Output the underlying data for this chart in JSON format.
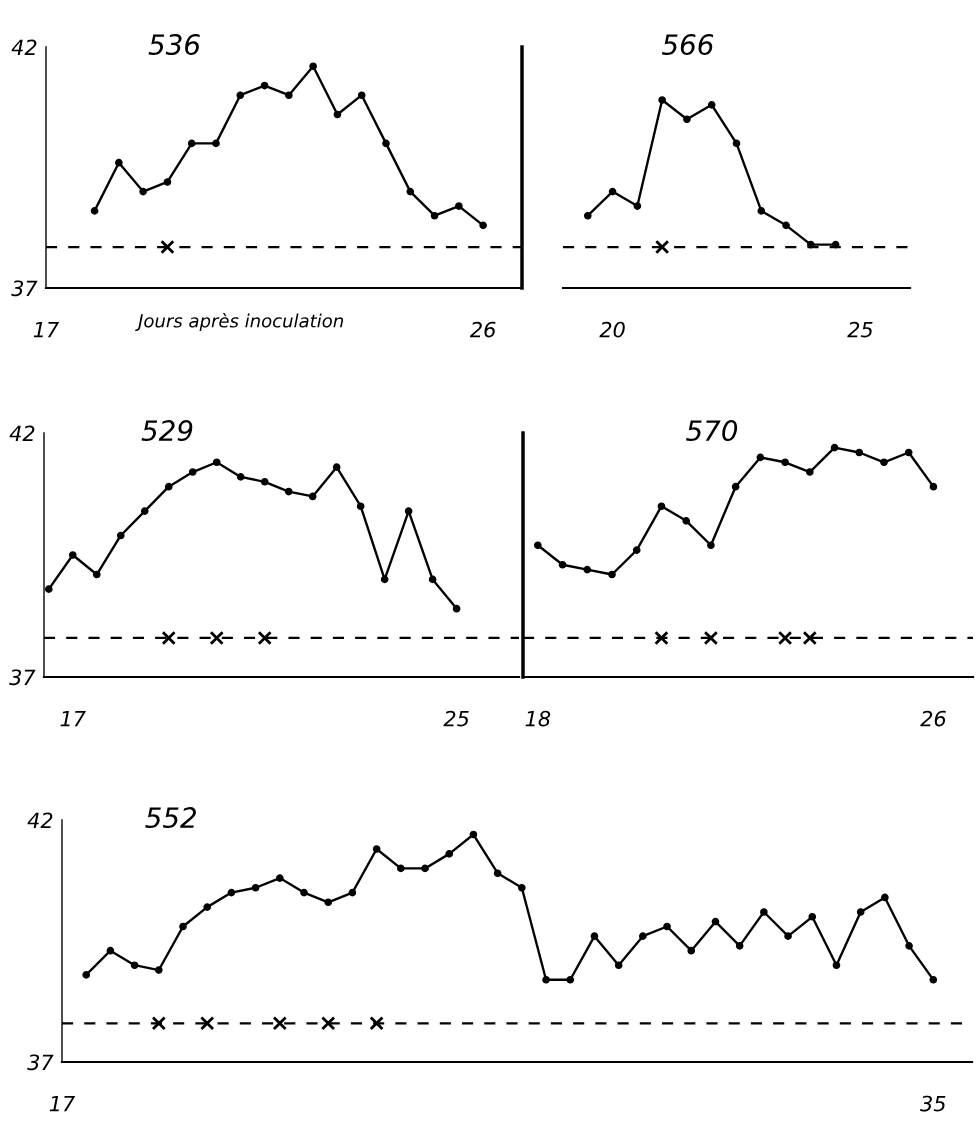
{
  "chart_data": [
    {
      "type": "line",
      "title": "536",
      "xlabel": "Jours après inoculation",
      "xlim": [
        17,
        26.8
      ],
      "xticks": [
        17,
        26
      ],
      "ylim": [
        37,
        42
      ],
      "yticks": [
        37,
        42
      ],
      "ref_lines": [
        {
          "axis": "y",
          "value": 37.85,
          "color": "#000000",
          "line_style": "dashed"
        }
      ],
      "series": [
        {
          "color": "#000000",
          "marker": "circle",
          "line_style": "solid",
          "x": [
            18,
            18.5,
            19,
            19.5,
            20,
            20.5,
            21,
            21.5,
            22,
            22.5,
            23,
            23.5,
            24,
            24.5,
            25,
            25.5,
            26
          ],
          "values": [
            38.6,
            39.6,
            39.0,
            39.2,
            40.0,
            40.0,
            41.0,
            41.2,
            41.0,
            41.6,
            40.6,
            41.0,
            40.0,
            39.0,
            38.5,
            38.7,
            38.3
          ]
        },
        {
          "type": "scatter",
          "color": "#000000",
          "marker": "cross",
          "x": [
            19.5
          ],
          "values": [
            37.85
          ]
        }
      ]
    },
    {
      "type": "line",
      "title": "566",
      "xlim": [
        19,
        26
      ],
      "xticks": [
        20,
        25
      ],
      "ylim": [
        37,
        42
      ],
      "yticks": [
        37,
        42
      ],
      "tick_labels": "x",
      "ref_lines": [
        {
          "axis": "y",
          "value": 37.85,
          "color": "#000000",
          "line_style": "dashed"
        }
      ],
      "series": [
        {
          "color": "#000000",
          "marker": "circle",
          "line_style": "solid",
          "x": [
            19.5,
            20,
            20.5,
            21,
            21.5,
            22,
            22.5,
            23,
            23.5,
            24,
            24.5
          ],
          "values": [
            38.5,
            39.0,
            38.7,
            40.9,
            40.5,
            40.8,
            40.0,
            38.6,
            38.3,
            37.9,
            37.9
          ]
        },
        {
          "type": "scatter",
          "color": "#000000",
          "marker": "cross",
          "x": [
            21
          ],
          "values": [
            37.85
          ]
        }
      ]
    },
    {
      "type": "line",
      "title": "529",
      "xlim": [
        16.4,
        26.3
      ],
      "xticks": [
        17,
        25
      ],
      "ylim": [
        37,
        42
      ],
      "yticks": [
        37,
        42
      ],
      "ref_lines": [
        {
          "axis": "y",
          "value": 37.8,
          "color": "#000000",
          "line_style": "dashed"
        }
      ],
      "series": [
        {
          "color": "#000000",
          "marker": "circle",
          "line_style": "solid",
          "x": [
            16.5,
            17,
            17.5,
            18,
            18.5,
            19,
            19.5,
            20,
            20.5,
            21,
            21.5,
            22,
            22.5,
            23,
            23.5,
            24,
            24.5,
            25
          ],
          "values": [
            38.8,
            39.5,
            39.1,
            39.9,
            40.4,
            40.9,
            41.2,
            41.4,
            41.1,
            41.0,
            40.8,
            40.7,
            41.3,
            40.5,
            39.0,
            40.4,
            39.0,
            38.4
          ]
        },
        {
          "type": "scatter",
          "color": "#000000",
          "marker": "cross",
          "x": [
            19,
            20,
            21
          ],
          "values": [
            37.8,
            37.8,
            37.8
          ]
        }
      ]
    },
    {
      "type": "line",
      "title": "570",
      "xlim": [
        17.7,
        26.8
      ],
      "xticks": [
        18,
        26
      ],
      "ylim": [
        37,
        42
      ],
      "yticks": [
        37,
        42
      ],
      "tick_labels": "x",
      "ref_lines": [
        {
          "axis": "y",
          "value": 37.8,
          "color": "#000000",
          "line_style": "dashed"
        }
      ],
      "series": [
        {
          "color": "#000000",
          "marker": "circle",
          "line_style": "solid",
          "x": [
            18,
            18.5,
            19,
            19.5,
            20,
            20.5,
            21,
            21.5,
            22,
            22.5,
            23,
            23.5,
            24,
            24.5,
            25,
            25.5,
            26
          ],
          "values": [
            39.7,
            39.3,
            39.2,
            39.1,
            39.6,
            40.5,
            40.2,
            39.7,
            40.9,
            41.5,
            41.4,
            41.2,
            41.7,
            41.6,
            41.4,
            41.6,
            40.9
          ]
        },
        {
          "type": "scatter",
          "color": "#000000",
          "marker": "cross",
          "x": [
            20.5,
            21.5,
            23,
            23.5
          ],
          "values": [
            37.8,
            37.8,
            37.8,
            37.8
          ]
        }
      ]
    },
    {
      "type": "line",
      "title": "552",
      "xlim": [
        17,
        35.8
      ],
      "xticks": [
        17,
        35
      ],
      "ylim": [
        37,
        42
      ],
      "yticks": [
        37,
        42
      ],
      "ref_lines": [
        {
          "axis": "y",
          "value": 37.8,
          "color": "#000000",
          "line_style": "dashed"
        }
      ],
      "series": [
        {
          "color": "#000000",
          "marker": "circle",
          "line_style": "solid",
          "x": [
            17.5,
            18,
            18.5,
            19,
            19.5,
            20,
            20.5,
            21,
            21.5,
            22,
            22.5,
            23,
            23.5,
            24,
            24.5,
            25,
            25.5,
            26,
            26.5,
            27,
            27.5,
            28,
            28.5,
            29,
            29.5,
            30,
            30.5,
            31,
            31.5,
            32,
            32.5,
            33,
            33.5,
            34,
            34.5,
            35
          ],
          "values": [
            38.8,
            39.3,
            39.0,
            38.9,
            39.8,
            40.2,
            40.5,
            40.6,
            40.8,
            40.5,
            40.3,
            40.5,
            41.4,
            41.0,
            41.0,
            41.3,
            41.7,
            40.9,
            40.6,
            38.7,
            38.7,
            39.6,
            39.0,
            39.6,
            39.8,
            39.3,
            39.9,
            39.4,
            40.1,
            39.6,
            40.0,
            39.0,
            40.1,
            40.4,
            39.4,
            38.7
          ]
        },
        {
          "type": "scatter",
          "color": "#000000",
          "marker": "cross",
          "x": [
            19,
            20,
            21.5,
            22.5,
            23.5
          ],
          "values": [
            37.8,
            37.8,
            37.8,
            37.8,
            37.8
          ]
        }
      ]
    }
  ]
}
